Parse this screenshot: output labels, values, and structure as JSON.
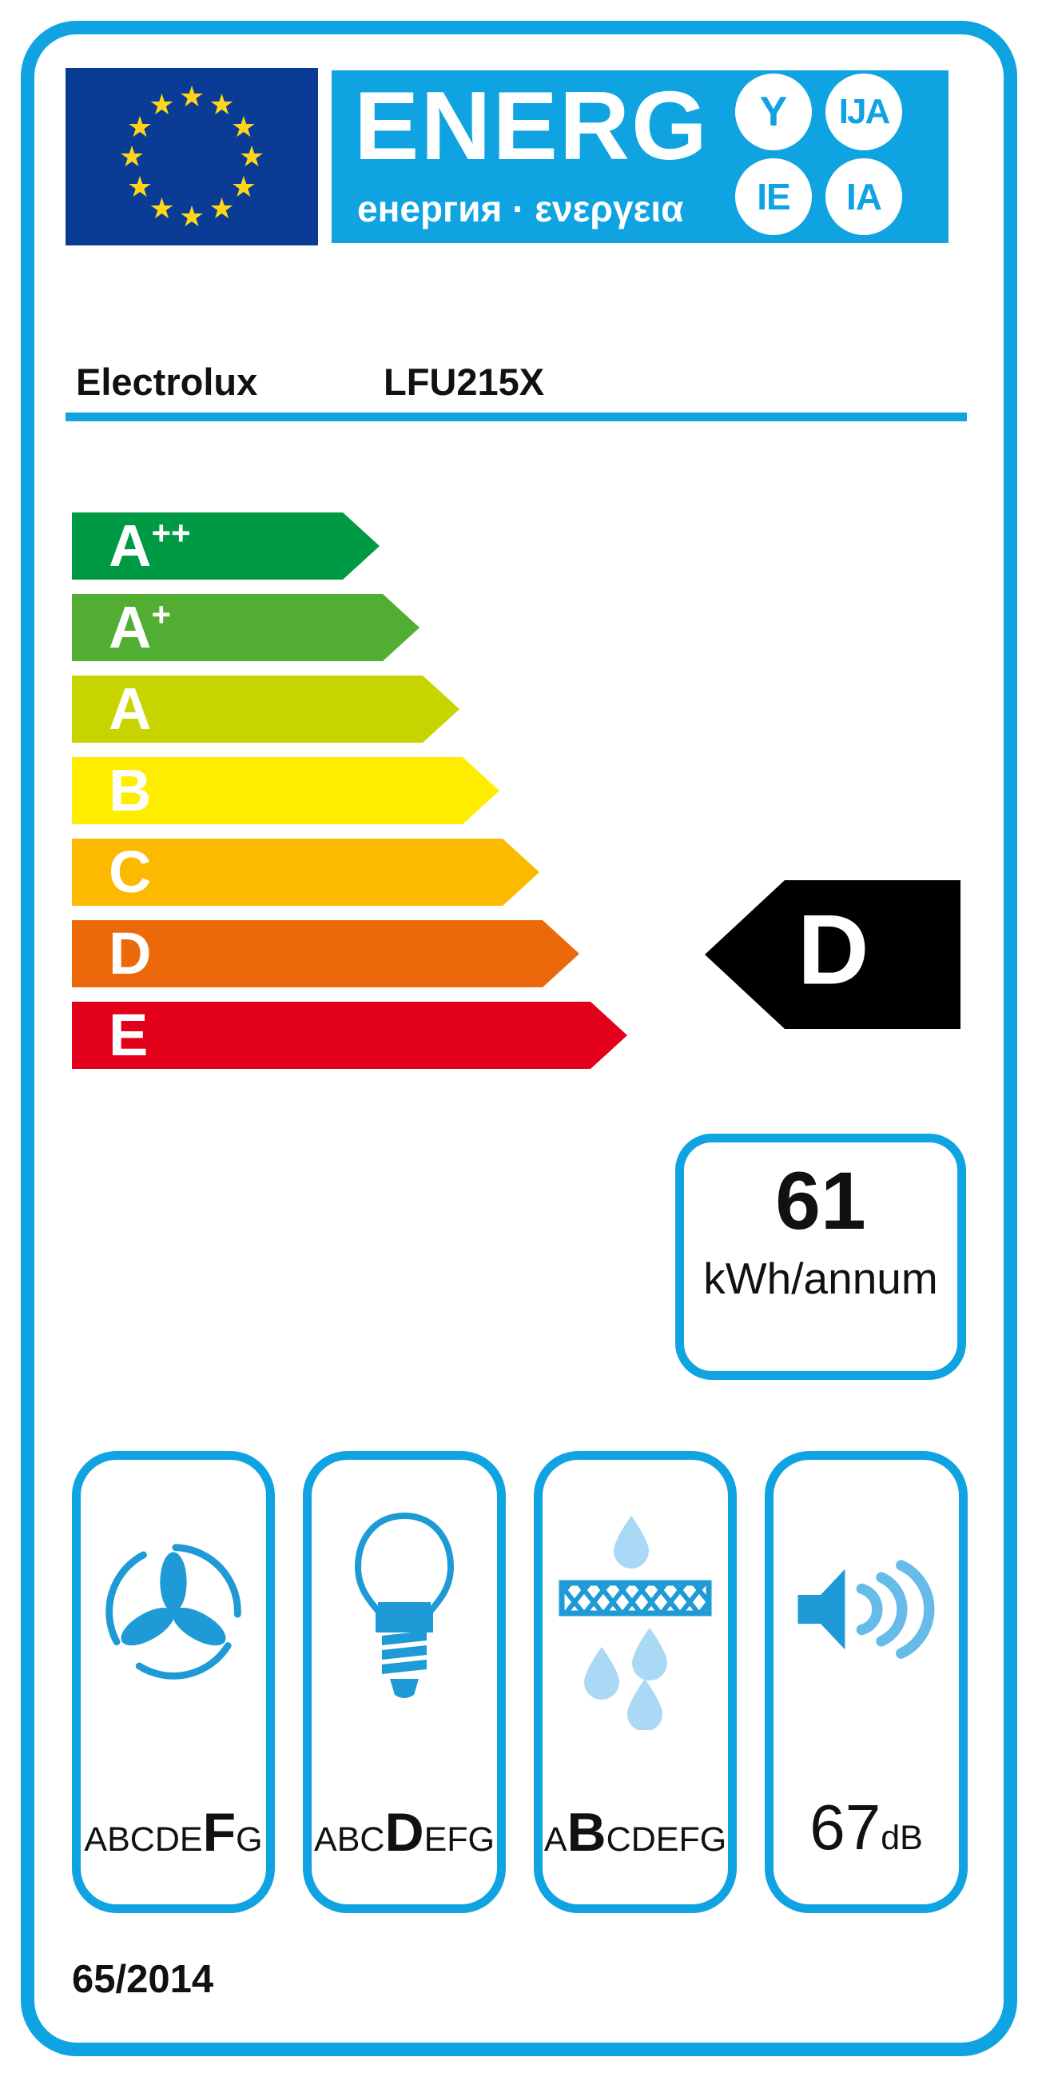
{
  "colors": {
    "accent_blue": "#0fa3e2",
    "icon_blue": "#1e9ad6",
    "wave_blue": "#66bbe9",
    "drop_blue": "#a9d9f5",
    "flag_blue": "#0b3c95",
    "star_yellow": "#ffd617",
    "rating_black": "#000000",
    "text_black": "#111111"
  },
  "header": {
    "logo_word": "ENERG",
    "logo_sub": "енергия · ενεργεια",
    "circles": [
      "Y",
      "IJA",
      "IE",
      "IA"
    ]
  },
  "flag": {
    "stars": 12
  },
  "product": {
    "brand": "Electrolux",
    "model": "LFU215X"
  },
  "scale": [
    {
      "label": "A",
      "sup": "++",
      "color": "#009a44"
    },
    {
      "label": "A",
      "sup": "+",
      "color": "#52ae32"
    },
    {
      "label": "A",
      "sup": "",
      "color": "#c8d400"
    },
    {
      "label": "B",
      "sup": "",
      "color": "#ffed00"
    },
    {
      "label": "C",
      "sup": "",
      "color": "#fbba00"
    },
    {
      "label": "D",
      "sup": "",
      "color": "#eb690b"
    },
    {
      "label": "E",
      "sup": "",
      "color": "#e2001a"
    }
  ],
  "rating": {
    "class": "D"
  },
  "annual_energy": {
    "value": "61",
    "unit": "kWh/annum"
  },
  "metrics": [
    {
      "name": "fluid-dynamic-efficiency",
      "icon": "fan-icon",
      "letters": "ABCDEFG",
      "highlight": "F"
    },
    {
      "name": "lighting-efficiency",
      "icon": "lamp-icon",
      "letters": "ABCDEFG",
      "highlight": "D"
    },
    {
      "name": "grease-filtering-efficiency",
      "icon": "grease-filter-icon",
      "letters": "ABCDEFG",
      "highlight": "B"
    },
    {
      "name": "noise-level",
      "icon": "speaker-icon",
      "value": "67",
      "unit": "dB"
    }
  ],
  "regulation": "65/2014"
}
